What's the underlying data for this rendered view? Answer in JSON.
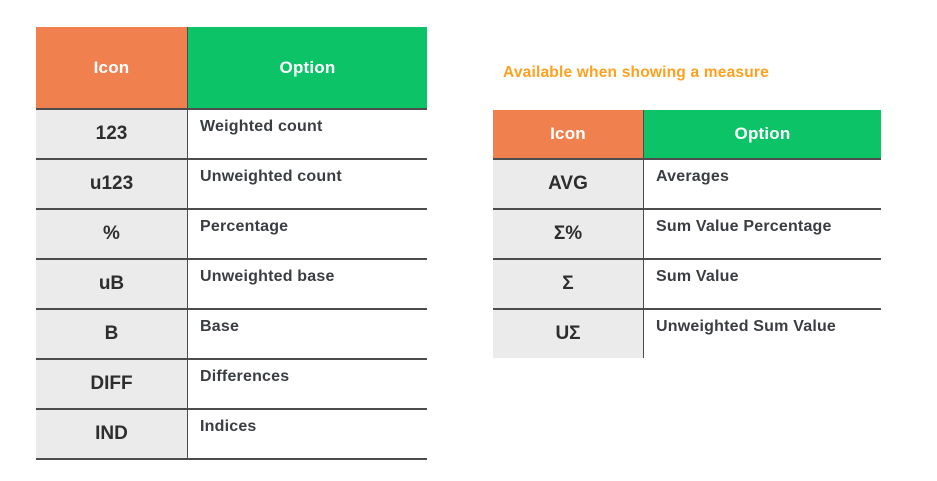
{
  "colors": {
    "orange_header": "#F0814F",
    "green_header": "#0CC368",
    "icon_cell_bg": "#EBEBEB",
    "border": "#4D4D4D",
    "header_text": "#FFFFFF",
    "icon_text": "#2E2E2E",
    "option_text": "#3A3D42",
    "note_text": "#FFA01E"
  },
  "note": {
    "text": "Available when showing a measure"
  },
  "left_table": {
    "headers": {
      "icon": "Icon",
      "option": "Option"
    },
    "rows": [
      {
        "icon": "123",
        "option": "Weighted count"
      },
      {
        "icon": "u123",
        "option": "Unweighted count"
      },
      {
        "icon": "%",
        "option": "Percentage"
      },
      {
        "icon": "uB",
        "option": "Unweighted base"
      },
      {
        "icon": "B",
        "option": "Base"
      },
      {
        "icon": "DIFF",
        "option": "Differences"
      },
      {
        "icon": "IND",
        "option": "Indices"
      }
    ]
  },
  "right_table": {
    "headers": {
      "icon": "Icon",
      "option": "Option"
    },
    "rows": [
      {
        "icon": "AVG",
        "option": "Averages"
      },
      {
        "icon": "Σ%",
        "option": "Sum Value Percentage"
      },
      {
        "icon": "Σ",
        "option": "Sum Value"
      },
      {
        "icon": "UΣ",
        "option": "Unweighted Sum Value"
      }
    ]
  }
}
